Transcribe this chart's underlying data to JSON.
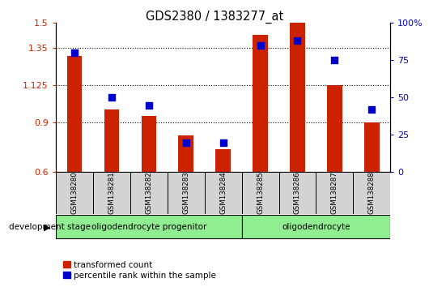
{
  "title": "GDS2380 / 1383277_at",
  "samples": [
    "GSM138280",
    "GSM138281",
    "GSM138282",
    "GSM138283",
    "GSM138284",
    "GSM138285",
    "GSM138286",
    "GSM138287",
    "GSM138288"
  ],
  "red_values": [
    1.3,
    0.98,
    0.94,
    0.82,
    0.74,
    1.43,
    1.5,
    1.125,
    0.9
  ],
  "blue_values": [
    80,
    50,
    45,
    20,
    20,
    85,
    88,
    75,
    42
  ],
  "ylim_left": [
    0.6,
    1.5
  ],
  "ylim_right": [
    0,
    100
  ],
  "yticks_left": [
    0.6,
    0.9,
    1.125,
    1.35,
    1.5
  ],
  "ytick_labels_left": [
    "0.6",
    "0.9",
    "1.125",
    "1.35",
    "1.5"
  ],
  "yticks_right": [
    0,
    25,
    50,
    75,
    100
  ],
  "ytick_labels_right": [
    "0",
    "25",
    "50",
    "75",
    "100%"
  ],
  "group_stage_label": "development stage",
  "bar_color": "#CC2200",
  "dot_color": "#0000CC",
  "bar_width": 0.4,
  "bg_color": "#FFFFFF",
  "plot_bg": "#FFFFFF",
  "legend_items": [
    "transformed count",
    "percentile rank within the sample"
  ],
  "grp1_label": "oligodendrocyte progenitor",
  "grp2_label": "oligodendrocyte",
  "grp_color": "#90EE90"
}
